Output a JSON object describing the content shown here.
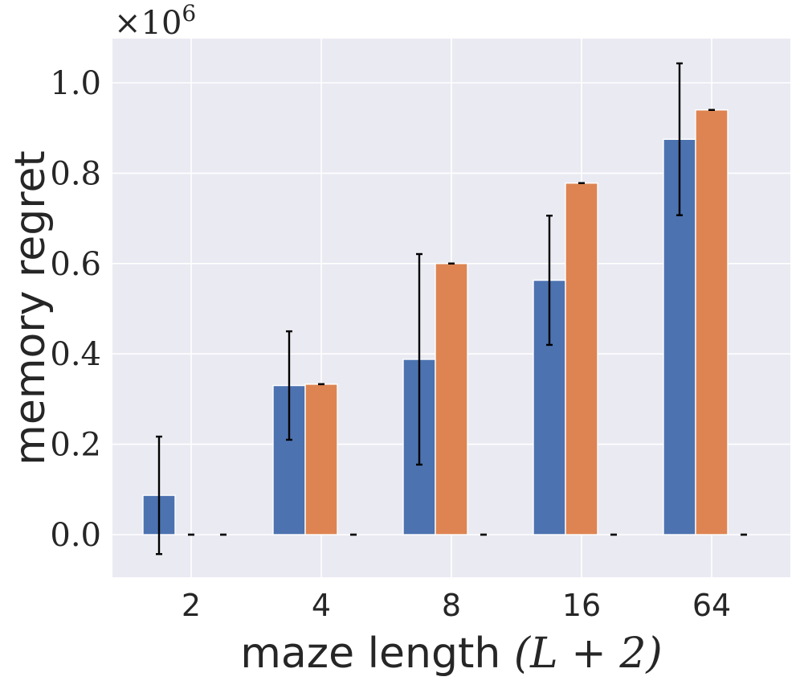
{
  "chart_data": {
    "type": "bar",
    "title": "",
    "xlabel_text": "maze length",
    "xlabel_math": "(L + 2)",
    "ylabel": "memory regret",
    "y_multiplier": "×10",
    "y_multiplier_exp": "6",
    "ylim": [
      -0.095,
      1.1
    ],
    "yticks": [
      0.0,
      0.2,
      0.4,
      0.6,
      0.8,
      1.0
    ],
    "ytick_labels": [
      "0.0",
      "0.2",
      "0.4",
      "0.6",
      "0.8",
      "1.0"
    ],
    "categories": [
      "2",
      "4",
      "8",
      "16",
      "64"
    ],
    "grid": true,
    "series": [
      {
        "name": "series-1",
        "color": "#4c72b0",
        "values": [
          0.087,
          0.33,
          0.388,
          0.563,
          0.875
        ],
        "errors": [
          0.13,
          0.12,
          0.233,
          0.143,
          0.168
        ]
      },
      {
        "name": "series-2",
        "color": "#dd8452",
        "values": [
          0.0,
          0.333,
          0.6,
          0.778,
          0.94
        ],
        "errors": [
          0.0,
          0.0,
          0.0,
          0.0,
          0.0
        ]
      },
      {
        "name": "series-3",
        "color": "#55a868",
        "values": [
          0.0,
          0.0,
          0.0,
          0.0,
          0.0
        ],
        "errors": [
          0.0,
          0.0,
          0.0,
          0.0,
          0.0
        ]
      }
    ]
  }
}
